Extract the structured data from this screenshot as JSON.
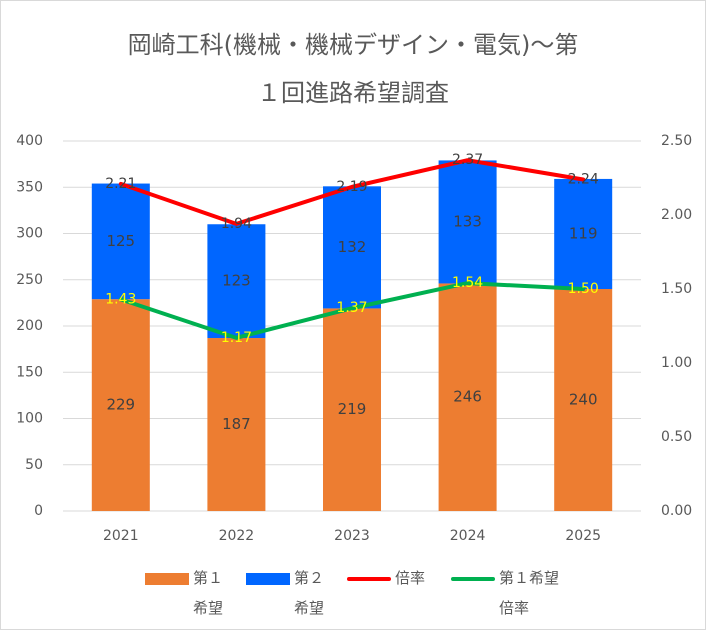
{
  "chart_data": {
    "type": "bar",
    "title_line1": "岡崎工科(機械・機械デザイン・電気)～第",
    "title_line2": "１回進路希望調査",
    "categories": [
      "2021",
      "2022",
      "2023",
      "2024",
      "2025"
    ],
    "stacked": true,
    "series": [
      {
        "name": "第１希望",
        "kind": "bar",
        "axis": "left",
        "color": "#ed7d31",
        "values": [
          229,
          187,
          219,
          246,
          240
        ]
      },
      {
        "name": "第２希望",
        "kind": "bar",
        "axis": "left",
        "color": "#0066ff",
        "values": [
          125,
          123,
          132,
          133,
          119
        ]
      },
      {
        "name": "倍率",
        "kind": "line",
        "axis": "right",
        "color": "#ff0000",
        "values": [
          2.21,
          1.94,
          2.19,
          2.37,
          2.24
        ],
        "labels": [
          "2.21",
          "1.94",
          "2.19",
          "2.37",
          "2.24"
        ]
      },
      {
        "name": "第１希望倍率",
        "kind": "line",
        "axis": "right",
        "color": "#00b050",
        "values": [
          1.43,
          1.17,
          1.37,
          1.54,
          1.5
        ],
        "labels": [
          "1.43",
          "1.17",
          "1.37",
          "1.54",
          "1.50"
        ]
      }
    ],
    "y_left": {
      "min": 0,
      "max": 400,
      "ticks": [
        "0",
        "50",
        "100",
        "150",
        "200",
        "250",
        "300",
        "350",
        "400"
      ]
    },
    "y_right": {
      "min": 0,
      "max": 2.5,
      "ticks": [
        "0.00",
        "0.50",
        "1.00",
        "1.50",
        "2.00",
        "2.50"
      ]
    },
    "grid": true,
    "legend_position": "bottom"
  },
  "legend": {
    "items": [
      {
        "label_line1": "第１",
        "label_line2": "希望",
        "style": "box",
        "color": "#ed7d31"
      },
      {
        "label_line1": "第２",
        "label_line2": "希望",
        "style": "box",
        "color": "#0066ff"
      },
      {
        "label_line1": "倍率",
        "label_line2": "",
        "style": "line",
        "color": "#ff0000"
      },
      {
        "label_line1": "第１希望",
        "label_line2": "倍率",
        "style": "line",
        "color": "#00b050"
      }
    ]
  }
}
